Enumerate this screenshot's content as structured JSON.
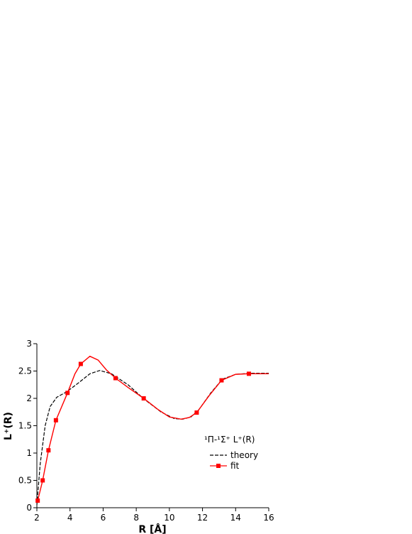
{
  "chart_data": {
    "type": "line",
    "xlabel": "R [Å]",
    "ylabel": "L⁺(R)",
    "legend_title": "¹Π-¹Σ⁺ L⁺(R)",
    "xlim": [
      2,
      16
    ],
    "xticks": [
      2,
      4,
      6,
      8,
      10,
      12,
      14,
      16
    ],
    "ylim": [
      0,
      3
    ],
    "yticks": [
      0,
      0.5,
      1,
      1.5,
      2,
      2.5,
      3
    ],
    "series": [
      {
        "name": "theory",
        "color": "#000000",
        "dash": true,
        "x": [
          2.0,
          2.2,
          2.5,
          2.8,
          3.2,
          3.8,
          4.5,
          5.2,
          5.8,
          6.5,
          7.5,
          8.5,
          9.5,
          10.3,
          10.8,
          11.3,
          11.8,
          12.5,
          13.2,
          14,
          15,
          16
        ],
        "values": [
          0.05,
          0.8,
          1.5,
          1.85,
          2.02,
          2.12,
          2.28,
          2.45,
          2.51,
          2.45,
          2.25,
          1.98,
          1.75,
          1.63,
          1.62,
          1.66,
          1.8,
          2.1,
          2.35,
          2.44,
          2.46,
          2.46
        ]
      },
      {
        "name": "fit",
        "color": "#ff0000",
        "dash": false,
        "x": [
          2.05,
          2.35,
          2.7,
          3.15,
          3.85,
          4.3,
          4.65,
          5.2,
          5.7,
          6.2,
          6.75,
          7.5,
          8.45,
          9.3,
          10,
          10.7,
          11.2,
          11.65,
          12.4,
          13.15,
          14,
          14.8,
          16
        ],
        "values": [
          0.13,
          0.5,
          1.05,
          1.6,
          2.1,
          2.45,
          2.63,
          2.77,
          2.7,
          2.52,
          2.37,
          2.2,
          2.0,
          1.8,
          1.66,
          1.62,
          1.65,
          1.74,
          2.05,
          2.33,
          2.44,
          2.45,
          2.45
        ],
        "markers": {
          "x": [
            2.05,
            2.35,
            2.7,
            3.15,
            3.85,
            4.65,
            6.75,
            8.45,
            11.65,
            13.15,
            14.8
          ],
          "values": [
            0.13,
            0.5,
            1.05,
            1.6,
            2.1,
            2.63,
            2.37,
            2.0,
            1.74,
            2.33,
            2.45
          ]
        }
      }
    ]
  }
}
